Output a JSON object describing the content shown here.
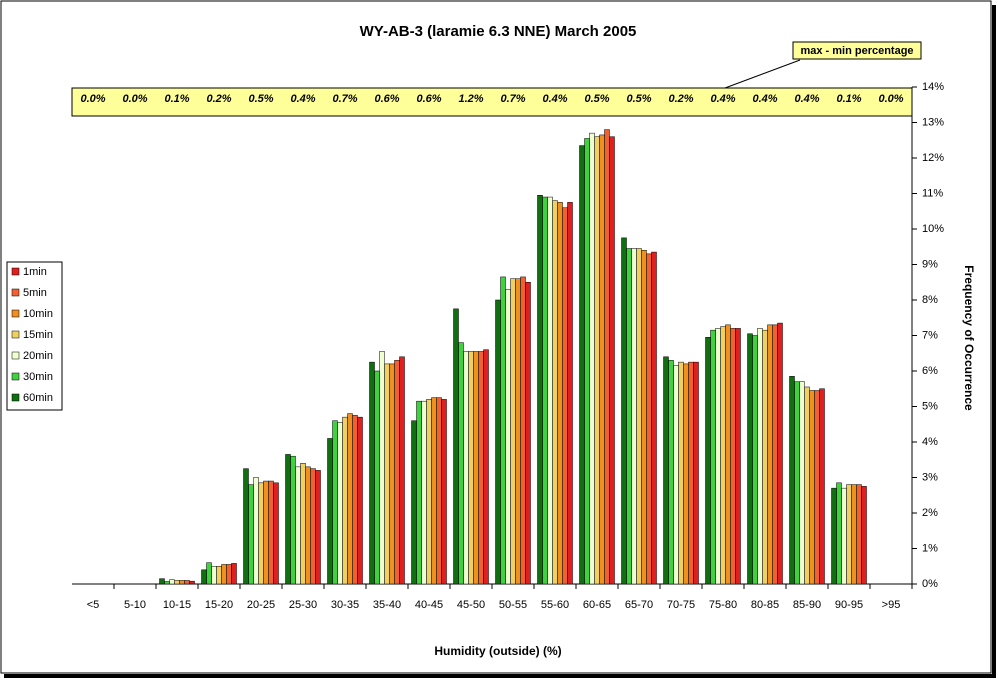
{
  "chart_data": {
    "type": "bar",
    "title": "WY-AB-3 (laramie 6.3 NNE) March 2005",
    "x_label": "Humidity (outside)   (%)",
    "y_label": "Frequency of Occurrence",
    "annotation": "max - min percentage",
    "categories": [
      "<5",
      "5-10",
      "10-15",
      "15-20",
      "20-25",
      "25-30",
      "30-35",
      "35-40",
      "40-45",
      "45-50",
      "50-55",
      "55-60",
      "60-65",
      "65-70",
      "70-75",
      "75-80",
      "80-85",
      "85-90",
      "90-95",
      ">95"
    ],
    "range_labels": [
      "0.0%",
      "0.0%",
      "0.1%",
      "0.2%",
      "0.5%",
      "0.4%",
      "0.7%",
      "0.6%",
      "0.6%",
      "1.2%",
      "0.7%",
      "0.4%",
      "0.5%",
      "0.5%",
      "0.2%",
      "0.4%",
      "0.4%",
      "0.4%",
      "0.1%",
      "0.0%"
    ],
    "ylim": [
      0,
      14
    ],
    "yticks": [
      {
        "value": 0,
        "label": "0%"
      },
      {
        "value": 1,
        "label": "1%"
      },
      {
        "value": 2,
        "label": "2%"
      },
      {
        "value": 3,
        "label": "3%"
      },
      {
        "value": 4,
        "label": "4%"
      },
      {
        "value": 5,
        "label": "5%"
      },
      {
        "value": 6,
        "label": "6%"
      },
      {
        "value": 7,
        "label": "7%"
      },
      {
        "value": 8,
        "label": "8%"
      },
      {
        "value": 9,
        "label": "9%"
      },
      {
        "value": 10,
        "label": "10%"
      },
      {
        "value": 11,
        "label": "11%"
      },
      {
        "value": 12,
        "label": "12%"
      },
      {
        "value": 13,
        "label": "13%"
      },
      {
        "value": 14,
        "label": "14%"
      }
    ],
    "series": [
      {
        "name": "1min",
        "color": "#e02020",
        "values": [
          0,
          0,
          0.08,
          0.58,
          2.85,
          3.2,
          4.7,
          6.4,
          5.2,
          6.6,
          8.5,
          10.75,
          12.6,
          9.35,
          6.25,
          7.2,
          7.35,
          5.5,
          2.75,
          0
        ]
      },
      {
        "name": "5min",
        "color": "#f06030",
        "values": [
          0,
          0,
          0.1,
          0.55,
          2.9,
          3.25,
          4.75,
          6.3,
          5.25,
          6.55,
          8.65,
          10.6,
          12.8,
          9.3,
          6.25,
          7.2,
          7.3,
          5.45,
          2.8,
          0
        ]
      },
      {
        "name": "10min",
        "color": "#f09020",
        "values": [
          0,
          0,
          0.1,
          0.55,
          2.9,
          3.3,
          4.8,
          6.2,
          5.25,
          6.55,
          8.6,
          10.75,
          12.65,
          9.4,
          6.2,
          7.3,
          7.3,
          5.45,
          2.8,
          0
        ]
      },
      {
        "name": "15min",
        "color": "#f0d060",
        "values": [
          0,
          0,
          0.1,
          0.5,
          2.85,
          3.4,
          4.7,
          6.2,
          5.2,
          6.55,
          8.6,
          10.8,
          12.6,
          9.45,
          6.25,
          7.25,
          7.15,
          5.55,
          2.8,
          0
        ]
      },
      {
        "name": "20min",
        "color": "#f0ffd0",
        "values": [
          0,
          0,
          0.12,
          0.5,
          3.0,
          3.3,
          4.55,
          6.55,
          5.15,
          6.55,
          8.3,
          10.9,
          12.7,
          9.45,
          6.15,
          7.2,
          7.2,
          5.7,
          2.7,
          0
        ]
      },
      {
        "name": "30min",
        "color": "#40d040",
        "values": [
          0,
          0,
          0.07,
          0.6,
          2.8,
          3.6,
          4.6,
          6.0,
          5.15,
          6.8,
          8.65,
          10.9,
          12.55,
          9.45,
          6.3,
          7.15,
          7.0,
          5.7,
          2.85,
          0
        ]
      },
      {
        "name": "60min",
        "color": "#107010",
        "values": [
          0,
          0,
          0.15,
          0.4,
          3.25,
          3.65,
          4.1,
          6.25,
          4.6,
          7.75,
          8.0,
          10.95,
          12.35,
          9.75,
          6.4,
          6.95,
          7.05,
          5.85,
          2.7,
          0
        ]
      }
    ]
  }
}
